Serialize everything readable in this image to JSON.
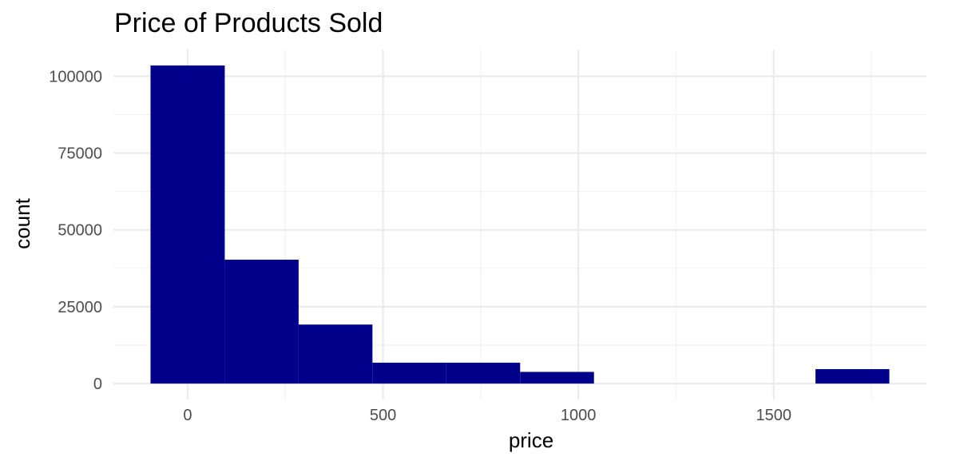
{
  "chart_data": {
    "type": "bar",
    "title": "Price of Products Sold",
    "xlabel": "price",
    "ylabel": "count",
    "bar_color": "#00008B",
    "bins": [
      {
        "start": -95,
        "end": 95,
        "count": 103500
      },
      {
        "start": 95,
        "end": 284,
        "count": 40300
      },
      {
        "start": 284,
        "end": 473,
        "count": 19200
      },
      {
        "start": 473,
        "end": 662,
        "count": 6800
      },
      {
        "start": 662,
        "end": 851,
        "count": 6800
      },
      {
        "start": 851,
        "end": 1040,
        "count": 3800
      },
      {
        "start": 1040,
        "end": 1229,
        "count": 0
      },
      {
        "start": 1229,
        "end": 1418,
        "count": 0
      },
      {
        "start": 1418,
        "end": 1607,
        "count": 0
      },
      {
        "start": 1607,
        "end": 1796,
        "count": 4700
      }
    ],
    "xlim": [
      -190,
      1891
    ],
    "ylim": [
      -5175,
      108675
    ],
    "x_ticks": [
      0,
      500,
      1000,
      1500
    ],
    "x_tick_labels": [
      "0",
      "500",
      "1000",
      "1500"
    ],
    "y_ticks": [
      0,
      25000,
      50000,
      75000,
      100000
    ],
    "y_tick_labels": [
      "0",
      "25000",
      "50000",
      "75000",
      "100000"
    ],
    "grid": true,
    "legend": "none"
  }
}
